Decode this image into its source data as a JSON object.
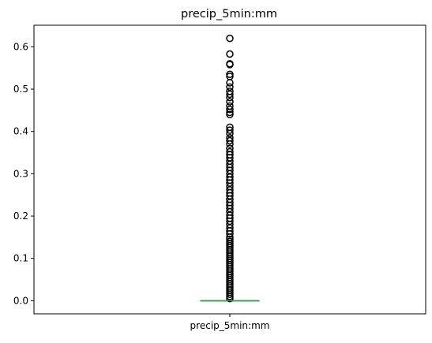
{
  "chart_data": {
    "type": "boxplot",
    "title": "precip_5min:mm",
    "xlabel": "",
    "ylabel": "",
    "categories": [
      "precip_5min:mm"
    ],
    "ylim": [
      -0.031,
      0.651
    ],
    "yticks": [
      "0.0",
      "0.1",
      "0.2",
      "0.3",
      "0.4",
      "0.5",
      "0.6"
    ],
    "grid": false,
    "series": [
      {
        "box": {
          "whisker_low": 0.0,
          "q1": 0.0,
          "median": 0.0,
          "q3": 0.0,
          "whisker_high": 0.0
        },
        "outliers": [
          0.62,
          0.583,
          0.56,
          0.558,
          0.535,
          0.53,
          0.515,
          0.505,
          0.495,
          0.488,
          0.48,
          0.47,
          0.46,
          0.452,
          0.445,
          0.44,
          0.41,
          0.403,
          0.395,
          0.385,
          0.378,
          0.37,
          0.36,
          0.352,
          0.345,
          0.338,
          0.33,
          0.322,
          0.315,
          0.308,
          0.3,
          0.292,
          0.285,
          0.278,
          0.27,
          0.262,
          0.255,
          0.248,
          0.24,
          0.232,
          0.225,
          0.218,
          0.21,
          0.202,
          0.195,
          0.188,
          0.18,
          0.172,
          0.165,
          0.158,
          0.15,
          0.145,
          0.14,
          0.135,
          0.13,
          0.125,
          0.12,
          0.115,
          0.11,
          0.105,
          0.1,
          0.095,
          0.09,
          0.085,
          0.08,
          0.075,
          0.07,
          0.065,
          0.06,
          0.055,
          0.05,
          0.045,
          0.04,
          0.035,
          0.03,
          0.025,
          0.02,
          0.015,
          0.01,
          0.005
        ]
      }
    ],
    "colors": {
      "median": "#2ca02c",
      "box": "#1f77b4",
      "outlier_edge": "#000000",
      "axes": "#000000"
    }
  }
}
